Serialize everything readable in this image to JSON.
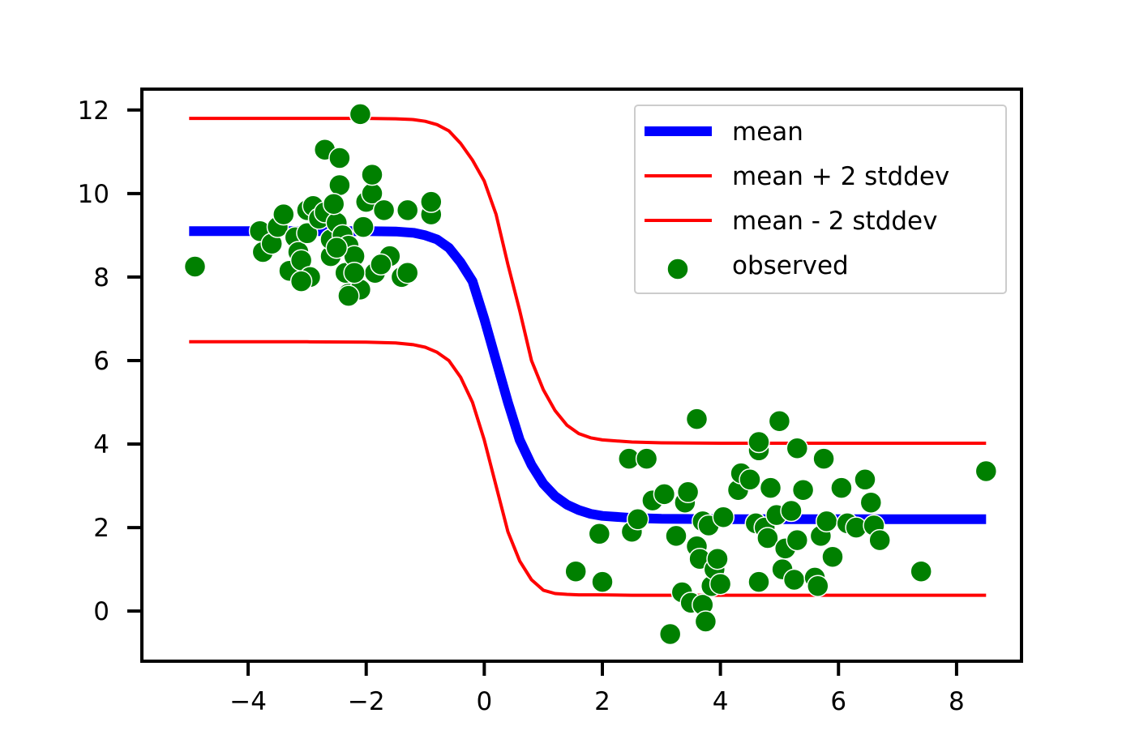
{
  "chart_data": {
    "type": "line",
    "title": "",
    "xlabel": "",
    "ylabel": "",
    "xlim": [
      -5.8,
      9.1
    ],
    "ylim": [
      -1.2,
      12.5
    ],
    "xticks": [
      -4,
      -2,
      0,
      2,
      4,
      6,
      8
    ],
    "xtick_labels": [
      "−4",
      "−2",
      "0",
      "2",
      "4",
      "6",
      "8"
    ],
    "yticks": [
      0,
      2,
      4,
      6,
      8,
      10,
      12
    ],
    "ytick_labels": [
      "0",
      "2",
      "4",
      "6",
      "8",
      "10",
      "12"
    ],
    "grid": false,
    "legend": {
      "position": "top-right",
      "entries": [
        "mean",
        "mean + 2 stddev",
        "mean - 2 stddev",
        "observed"
      ]
    },
    "series": [
      {
        "name": "mean",
        "kind": "line",
        "color": "#0000ff",
        "x": [
          -5.0,
          -4.0,
          -3.0,
          -2.0,
          -1.5,
          -1.2,
          -1.0,
          -0.8,
          -0.6,
          -0.4,
          -0.2,
          0.0,
          0.2,
          0.4,
          0.6,
          0.8,
          1.0,
          1.2,
          1.4,
          1.6,
          1.8,
          2.0,
          2.5,
          3.0,
          4.0,
          5.0,
          6.0,
          7.0,
          8.5
        ],
        "y": [
          9.1,
          9.1,
          9.1,
          9.1,
          9.09,
          9.06,
          9.0,
          8.9,
          8.7,
          8.35,
          7.9,
          7.0,
          6.0,
          5.0,
          4.1,
          3.5,
          3.05,
          2.75,
          2.55,
          2.42,
          2.33,
          2.28,
          2.23,
          2.21,
          2.2,
          2.2,
          2.2,
          2.2,
          2.2
        ]
      },
      {
        "name": "mean + 2 stddev",
        "kind": "line",
        "color": "#ff0000",
        "x": [
          -5.0,
          -4.0,
          -3.0,
          -2.0,
          -1.5,
          -1.2,
          -1.0,
          -0.8,
          -0.6,
          -0.4,
          -0.2,
          0.0,
          0.2,
          0.4,
          0.6,
          0.8,
          1.0,
          1.2,
          1.4,
          1.6,
          1.8,
          2.0,
          2.5,
          3.0,
          4.0,
          5.0,
          6.0,
          7.0,
          8.5
        ],
        "y": [
          11.8,
          11.8,
          11.8,
          11.8,
          11.79,
          11.77,
          11.73,
          11.65,
          11.5,
          11.2,
          10.8,
          10.3,
          9.5,
          8.3,
          7.2,
          6.0,
          5.3,
          4.8,
          4.45,
          4.25,
          4.15,
          4.1,
          4.05,
          4.03,
          4.02,
          4.02,
          4.02,
          4.02,
          4.02
        ]
      },
      {
        "name": "mean - 2 stddev",
        "kind": "line",
        "color": "#ff0000",
        "x": [
          -5.0,
          -4.0,
          -3.0,
          -2.0,
          -1.5,
          -1.2,
          -1.0,
          -0.8,
          -0.6,
          -0.4,
          -0.2,
          0.0,
          0.2,
          0.4,
          0.6,
          0.8,
          1.0,
          1.2,
          1.4,
          1.6,
          1.8,
          2.0,
          2.5,
          3.0,
          4.0,
          5.0,
          6.0,
          7.0,
          8.5
        ],
        "y": [
          6.45,
          6.45,
          6.45,
          6.44,
          6.42,
          6.38,
          6.32,
          6.2,
          6.0,
          5.6,
          5.0,
          4.1,
          3.0,
          1.9,
          1.2,
          0.75,
          0.5,
          0.42,
          0.4,
          0.39,
          0.39,
          0.39,
          0.38,
          0.38,
          0.38,
          0.38,
          0.38,
          0.38,
          0.38
        ]
      },
      {
        "name": "observed",
        "kind": "scatter",
        "color": "#008000",
        "points": [
          [
            -4.9,
            8.25
          ],
          [
            -3.8,
            9.1
          ],
          [
            -3.75,
            8.6
          ],
          [
            -3.6,
            8.8
          ],
          [
            -3.5,
            9.2
          ],
          [
            -3.4,
            9.5
          ],
          [
            -3.3,
            8.15
          ],
          [
            -3.2,
            8.95
          ],
          [
            -3.15,
            8.6
          ],
          [
            -3.1,
            8.4
          ],
          [
            -3.0,
            9.6
          ],
          [
            -3.0,
            9.05
          ],
          [
            -2.95,
            8.0
          ],
          [
            -2.9,
            9.7
          ],
          [
            -2.8,
            9.4
          ],
          [
            -2.7,
            9.55
          ],
          [
            -2.6,
            8.5
          ],
          [
            -2.6,
            8.9
          ],
          [
            -2.5,
            9.3
          ],
          [
            -2.45,
            10.2
          ],
          [
            -2.4,
            9.0
          ],
          [
            -2.35,
            8.1
          ],
          [
            -2.3,
            7.6
          ],
          [
            -2.3,
            8.75
          ],
          [
            -2.2,
            8.5
          ],
          [
            -2.1,
            7.7
          ],
          [
            -2.05,
            9.2
          ],
          [
            -2.0,
            9.8
          ],
          [
            -1.9,
            10.0
          ],
          [
            -1.9,
            10.45
          ],
          [
            -1.85,
            8.1
          ],
          [
            -1.7,
            9.6
          ],
          [
            -1.6,
            8.5
          ],
          [
            -1.4,
            8.0
          ],
          [
            -1.3,
            9.6
          ],
          [
            -1.3,
            8.1
          ],
          [
            -0.9,
            9.5
          ],
          [
            -0.9,
            9.8
          ],
          [
            -2.7,
            11.05
          ],
          [
            -2.45,
            10.85
          ],
          [
            -2.1,
            11.9
          ],
          [
            -2.55,
            9.75
          ],
          [
            -3.1,
            7.9
          ],
          [
            -2.3,
            7.55
          ],
          [
            -2.5,
            8.7
          ],
          [
            -2.2,
            8.1
          ],
          [
            -1.75,
            8.3
          ],
          [
            1.55,
            0.95
          ],
          [
            1.95,
            1.85
          ],
          [
            2.0,
            0.7
          ],
          [
            2.45,
            3.65
          ],
          [
            2.5,
            1.9
          ],
          [
            2.6,
            2.2
          ],
          [
            2.75,
            3.65
          ],
          [
            2.85,
            2.65
          ],
          [
            3.05,
            2.8
          ],
          [
            3.25,
            1.8
          ],
          [
            3.35,
            0.45
          ],
          [
            3.4,
            2.6
          ],
          [
            3.45,
            2.85
          ],
          [
            3.5,
            0.2
          ],
          [
            3.6,
            4.6
          ],
          [
            3.6,
            1.55
          ],
          [
            3.65,
            1.25
          ],
          [
            3.7,
            2.15
          ],
          [
            3.7,
            0.15
          ],
          [
            3.75,
            -0.25
          ],
          [
            3.8,
            2.05
          ],
          [
            3.85,
            0.6
          ],
          [
            3.9,
            1.0
          ],
          [
            3.95,
            1.25
          ],
          [
            4.0,
            0.65
          ],
          [
            4.05,
            2.25
          ],
          [
            4.3,
            2.9
          ],
          [
            4.35,
            3.3
          ],
          [
            4.5,
            3.15
          ],
          [
            4.6,
            2.1
          ],
          [
            4.65,
            3.85
          ],
          [
            4.65,
            4.05
          ],
          [
            4.65,
            0.7
          ],
          [
            4.75,
            2.0
          ],
          [
            4.8,
            1.75
          ],
          [
            4.85,
            2.95
          ],
          [
            4.95,
            2.3
          ],
          [
            5.0,
            4.55
          ],
          [
            5.05,
            1.0
          ],
          [
            5.1,
            1.5
          ],
          [
            5.2,
            2.4
          ],
          [
            5.25,
            0.75
          ],
          [
            5.3,
            3.9
          ],
          [
            5.3,
            1.7
          ],
          [
            5.4,
            2.9
          ],
          [
            5.6,
            0.8
          ],
          [
            5.65,
            0.6
          ],
          [
            5.7,
            1.8
          ],
          [
            5.75,
            3.65
          ],
          [
            5.8,
            2.15
          ],
          [
            5.9,
            1.3
          ],
          [
            6.05,
            2.95
          ],
          [
            6.15,
            2.1
          ],
          [
            6.3,
            2.0
          ],
          [
            6.45,
            3.15
          ],
          [
            6.55,
            2.6
          ],
          [
            6.6,
            2.05
          ],
          [
            6.7,
            1.7
          ],
          [
            7.4,
            0.95
          ],
          [
            8.5,
            3.35
          ],
          [
            3.15,
            -0.55
          ]
        ]
      }
    ]
  }
}
